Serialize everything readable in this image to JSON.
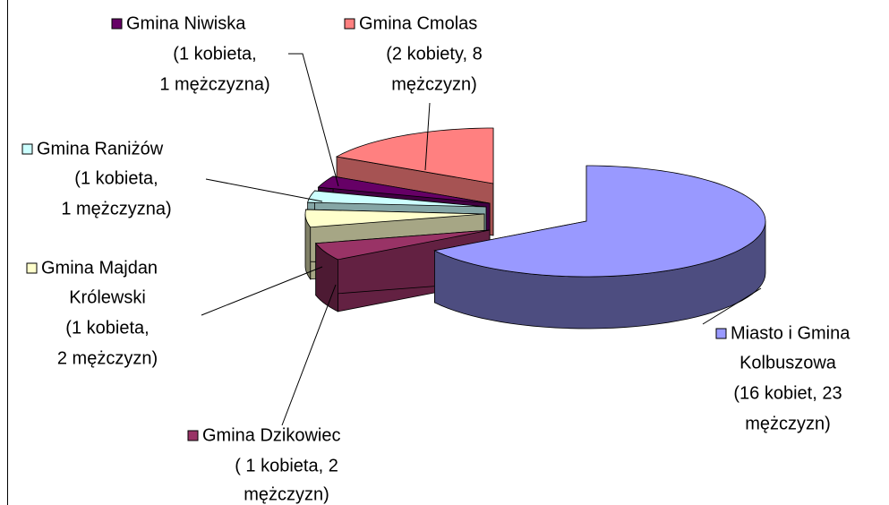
{
  "chart_data": {
    "type": "pie3d",
    "categories": [
      [
        "Miasto i Gmina",
        "Kolbuszowa",
        "(16 kobiet, 23",
        "mężczyzn)"
      ],
      [
        "Gmina Dzikowiec",
        "( 1 kobieta, 2",
        "mężczyzn)"
      ],
      [
        "Gmina Majdan",
        "Królewski",
        "(1 kobieta,",
        "2 mężczyzn)"
      ],
      [
        "Gmina Raniżów",
        "(1 kobieta,",
        "1 mężczyzna)"
      ],
      [
        "Gmina Niwiska",
        "(1 kobieta,",
        "1 mężczyzna)"
      ],
      [
        "Gmina Cmolas",
        "(2 kobiety, 8",
        "mężczyzn)"
      ]
    ],
    "values": [
      39,
      3,
      3,
      2,
      2,
      10
    ],
    "colors": [
      "#9999ff",
      "#993366",
      "#ffffcc",
      "#ccffff",
      "#660066",
      "#ff8080"
    ]
  }
}
